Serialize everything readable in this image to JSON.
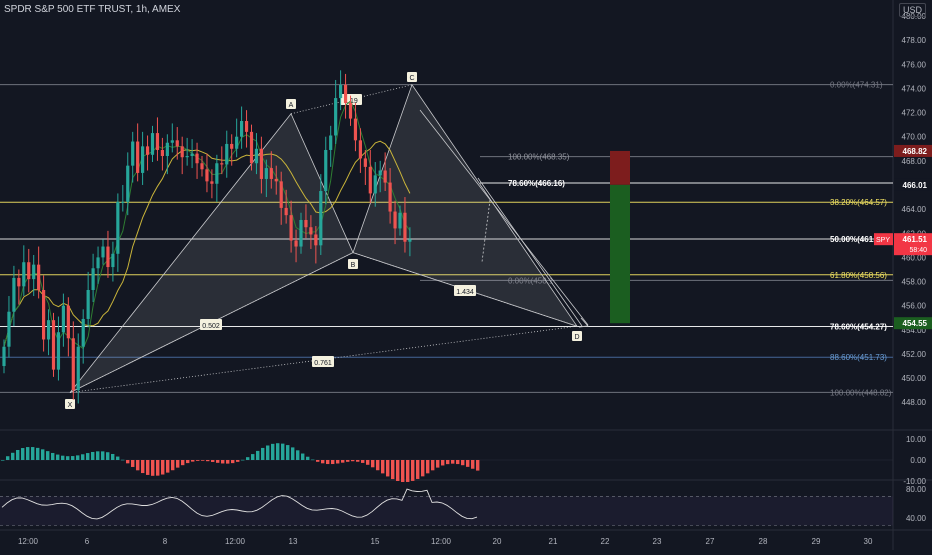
{
  "header": {
    "title": "SPDR S&P 500 ETF TRUST, 1h, AMEX",
    "currency": "USD"
  },
  "colors": {
    "background": "#131722",
    "bull": "#26a69a",
    "bear": "#ef5350",
    "fib": "#f5e663",
    "pattern_fill": "#c8c9cc",
    "sma_short": "#2e7d32",
    "sma_long": "#c9b43a",
    "level_line": "#e8e8e8",
    "stop_zone": "#7d1d1d",
    "target_zone": "#1b5e20",
    "price_tag": "#f23645"
  },
  "price_axis": {
    "ticks": [
      "480.00",
      "478.00",
      "476.00",
      "474.00",
      "472.00",
      "470.00",
      "468.00",
      "466.00",
      "464.00",
      "462.00",
      "460.00",
      "458.00",
      "456.00",
      "454.00",
      "452.00",
      "450.00",
      "448.00"
    ],
    "badges": {
      "stop": "468.82",
      "entry": "466.01",
      "last": "461.51",
      "countdown": "58:40",
      "symbol": "SPY",
      "target": "454.55"
    }
  },
  "time_axis": {
    "ticks": [
      "12:00",
      "6",
      "8",
      "12:00",
      "13",
      "15",
      "12:00",
      "20",
      "21",
      "22",
      "23",
      "27",
      "28",
      "29",
      "30"
    ]
  },
  "macd_axis": {
    "ticks": [
      "10.00",
      "0.00",
      "-10.00"
    ]
  },
  "rsi_axis": {
    "ticks": [
      "80.00",
      "40.00"
    ]
  },
  "pattern": {
    "points": [
      {
        "label": "X",
        "price": 448.8
      },
      {
        "label": "A",
        "price": 471.9
      },
      {
        "label": "B",
        "price": 460.4
      },
      {
        "label": "C",
        "price": 474.3
      },
      {
        "label": "D",
        "price": 454.3
      }
    ],
    "ratios": [
      {
        "id": "xb",
        "label": "0.502"
      },
      {
        "id": "xd",
        "label": "0.761"
      },
      {
        "id": "ac",
        "label": "1.19"
      },
      {
        "id": "bd",
        "label": "1.434"
      }
    ]
  },
  "fib_levels": [
    {
      "label": "0.00%(474.31)",
      "price": 474.31
    },
    {
      "label": "100.00%(468.35)",
      "price": 468.35
    },
    {
      "label": "78.60%(466.16)",
      "price": 466.16
    },
    {
      "label": "38.20%(464.57)",
      "price": 464.57
    },
    {
      "label": "50.00%(461.5",
      "price": 461.52
    },
    {
      "label": "61.80%(458.56)",
      "price": 458.56
    },
    {
      "label": "0.00%(458.1",
      "price": 458.1
    },
    {
      "label": "78.60%(454.27)",
      "price": 454.27
    },
    {
      "label": "88.60%(451.73)",
      "price": 451.73
    },
    {
      "label": "100.00%(448.82)",
      "price": 448.82
    }
  ],
  "chart_data": {
    "type": "candlestick",
    "title": "SPDR S&P 500 ETF TRUST, 1h, AMEX",
    "ylim": [
      447,
      481
    ],
    "x_ticks": [
      "12:00",
      "6",
      "8",
      "12:00",
      "13",
      "15",
      "12:00",
      "20",
      "21",
      "22",
      "23",
      "27",
      "28",
      "29",
      "30"
    ],
    "close": [
      452.6,
      455.5,
      458.3,
      457.6,
      459.6,
      458.2,
      459.4,
      457.3,
      453.2,
      454.8,
      450.7,
      453.8,
      456.0,
      453.3,
      449.0,
      452.6,
      454.9,
      457.3,
      459.1,
      460.0,
      460.9,
      459.2,
      460.3,
      464.6,
      464.6,
      467.6,
      469.6,
      467.0,
      469.2,
      468.5,
      470.3,
      468.9,
      468.4,
      469.5,
      469.7,
      469.2,
      468.3,
      468.4,
      468.6,
      467.8,
      467.3,
      466.3,
      466.1,
      467.8,
      467.7,
      469.4,
      469.0,
      470.0,
      471.3,
      470.4,
      467.8,
      469.0,
      466.5,
      467.4,
      466.5,
      466.3,
      464.1,
      463.5,
      461.4,
      460.9,
      463.1,
      462.5,
      461.9,
      461.0,
      465.5,
      468.9,
      470.1,
      473.2,
      474.3,
      472.8,
      471.5,
      469.7,
      468.2,
      467.5,
      465.3,
      466.8,
      467.2,
      466.2,
      463.8,
      462.4,
      463.7,
      461.3,
      461.5
    ],
    "stop_target": {
      "stop": 468.82,
      "entry": 466.01,
      "target": 454.55
    },
    "macd_histogram_range": [
      -10,
      10
    ],
    "rsi_range": [
      40,
      80
    ]
  }
}
